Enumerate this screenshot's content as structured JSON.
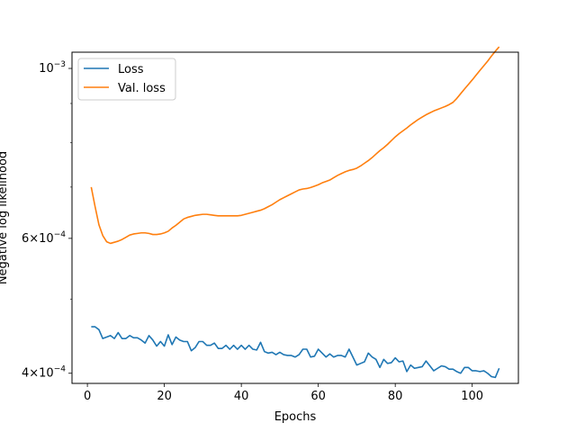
{
  "chart_data": {
    "type": "line",
    "title": "",
    "xlabel": "Epochs",
    "ylabel": "Negative log likelihood",
    "xlim": [
      -4,
      112
    ],
    "ylim": [
      0.000388,
      0.00105
    ],
    "yscale": "log",
    "x_ticks": [
      0,
      20,
      40,
      60,
      80,
      100
    ],
    "x_tick_labels": [
      "0",
      "20",
      "40",
      "60",
      "80",
      "100"
    ],
    "y_ticks": [
      0.0004,
      0.0006,
      0.001
    ],
    "y_tick_labels": [
      {
        "base": "4×10",
        "exp": "−4"
      },
      {
        "base": "6×10",
        "exp": "−4"
      },
      {
        "base": "10",
        "exp": "−3"
      }
    ],
    "grid": false,
    "legend_placement": "upper-left",
    "series": [
      {
        "name": "Loss",
        "color": "#1f77b4",
        "x": [
          1,
          2,
          3,
          4,
          5,
          6,
          7,
          8,
          9,
          10,
          11,
          12,
          13,
          14,
          15,
          16,
          17,
          18,
          19,
          20,
          21,
          22,
          23,
          24,
          25,
          26,
          27,
          28,
          29,
          30,
          31,
          32,
          33,
          34,
          35,
          36,
          37,
          38,
          39,
          40,
          41,
          42,
          43,
          44,
          45,
          46,
          47,
          48,
          49,
          50,
          51,
          52,
          53,
          54,
          55,
          56,
          57,
          58,
          59,
          60,
          61,
          62,
          63,
          64,
          65,
          66,
          67,
          68,
          69,
          70,
          71,
          72,
          73,
          74,
          75,
          76,
          77,
          78,
          79,
          80,
          81,
          82,
          83,
          84,
          85,
          86,
          87,
          88,
          89,
          90,
          91,
          92,
          93,
          94,
          95,
          96,
          97,
          98,
          99,
          100,
          101,
          102,
          103,
          104,
          105,
          106,
          107
        ],
        "y": [
          0.00046,
          0.00046,
          0.000456,
          0.000444,
          0.000446,
          0.000448,
          0.000444,
          0.000452,
          0.000444,
          0.000444,
          0.000448,
          0.000445,
          0.000445,
          0.000442,
          0.000438,
          0.000448,
          0.000442,
          0.000434,
          0.00044,
          0.000434,
          0.000449,
          0.000436,
          0.000446,
          0.000442,
          0.00044,
          0.00044,
          0.000428,
          0.000432,
          0.00044,
          0.00044,
          0.000435,
          0.000435,
          0.000438,
          0.000431,
          0.000431,
          0.000435,
          0.00043,
          0.000435,
          0.00043,
          0.000435,
          0.00043,
          0.000435,
          0.00043,
          0.000429,
          0.000439,
          0.000427,
          0.000425,
          0.000426,
          0.000423,
          0.000426,
          0.000423,
          0.000422,
          0.000422,
          0.00042,
          0.000423,
          0.00043,
          0.00043,
          0.00042,
          0.000421,
          0.00043,
          0.000425,
          0.00042,
          0.000424,
          0.00042,
          0.000422,
          0.000422,
          0.00042,
          0.00043,
          0.00042,
          0.00041,
          0.000412,
          0.000414,
          0.000425,
          0.00042,
          0.000417,
          0.000407,
          0.000417,
          0.000412,
          0.000413,
          0.000419,
          0.000414,
          0.000415,
          0.000402,
          0.00041,
          0.000406,
          0.000407,
          0.000408,
          0.000415,
          0.000409,
          0.000403,
          0.000406,
          0.000409,
          0.000408,
          0.000405,
          0.000405,
          0.000402,
          0.0004,
          0.000407,
          0.000407,
          0.000403,
          0.000403,
          0.000402,
          0.000403,
          0.0004,
          0.000396,
          0.000395,
          0.000406
        ]
      },
      {
        "name": "Val. loss",
        "color": "#ff7f0e",
        "x": [
          1,
          2,
          3,
          4,
          5,
          6,
          7,
          8,
          9,
          10,
          11,
          12,
          13,
          14,
          15,
          16,
          17,
          18,
          19,
          20,
          21,
          22,
          23,
          24,
          25,
          26,
          27,
          28,
          29,
          30,
          31,
          32,
          33,
          34,
          35,
          36,
          37,
          38,
          39,
          40,
          41,
          42,
          43,
          44,
          45,
          46,
          47,
          48,
          49,
          50,
          51,
          52,
          53,
          54,
          55,
          56,
          57,
          58,
          59,
          60,
          61,
          62,
          63,
          64,
          65,
          66,
          67,
          68,
          69,
          70,
          71,
          72,
          73,
          74,
          75,
          76,
          77,
          78,
          79,
          80,
          81,
          82,
          83,
          84,
          85,
          86,
          87,
          88,
          89,
          90,
          91,
          92,
          93,
          94,
          95,
          96,
          97,
          98,
          99,
          100,
          101,
          102,
          103,
          104,
          105,
          106,
          107
        ],
        "y": [
          0.0007,
          0.00066,
          0.000625,
          0.000605,
          0.000594,
          0.000591,
          0.000593,
          0.000595,
          0.000598,
          0.000602,
          0.000606,
          0.000608,
          0.000609,
          0.00061,
          0.00061,
          0.000609,
          0.000607,
          0.000607,
          0.000608,
          0.00061,
          0.000613,
          0.000619,
          0.000624,
          0.00063,
          0.000636,
          0.000639,
          0.000641,
          0.000643,
          0.000644,
          0.000645,
          0.000645,
          0.000644,
          0.000643,
          0.000642,
          0.000642,
          0.000642,
          0.000642,
          0.000642,
          0.000642,
          0.000643,
          0.000645,
          0.000647,
          0.000649,
          0.000651,
          0.000653,
          0.000656,
          0.00066,
          0.000664,
          0.000669,
          0.000674,
          0.000678,
          0.000682,
          0.000686,
          0.00069,
          0.000694,
          0.000696,
          0.000697,
          0.000699,
          0.000702,
          0.000705,
          0.000709,
          0.000712,
          0.000715,
          0.00072,
          0.000725,
          0.000729,
          0.000733,
          0.000736,
          0.000738,
          0.000741,
          0.000746,
          0.000752,
          0.000758,
          0.000765,
          0.000773,
          0.000781,
          0.000788,
          0.000796,
          0.000805,
          0.000814,
          0.000822,
          0.000829,
          0.000836,
          0.000844,
          0.000851,
          0.000858,
          0.000864,
          0.00087,
          0.000875,
          0.00088,
          0.000884,
          0.000888,
          0.000892,
          0.000897,
          0.000903,
          0.000914,
          0.000927,
          0.00094,
          0.000953,
          0.000966,
          0.00098,
          0.000994,
          0.001008,
          0.001022,
          0.001038,
          0.001053,
          0.001067
        ]
      }
    ]
  }
}
